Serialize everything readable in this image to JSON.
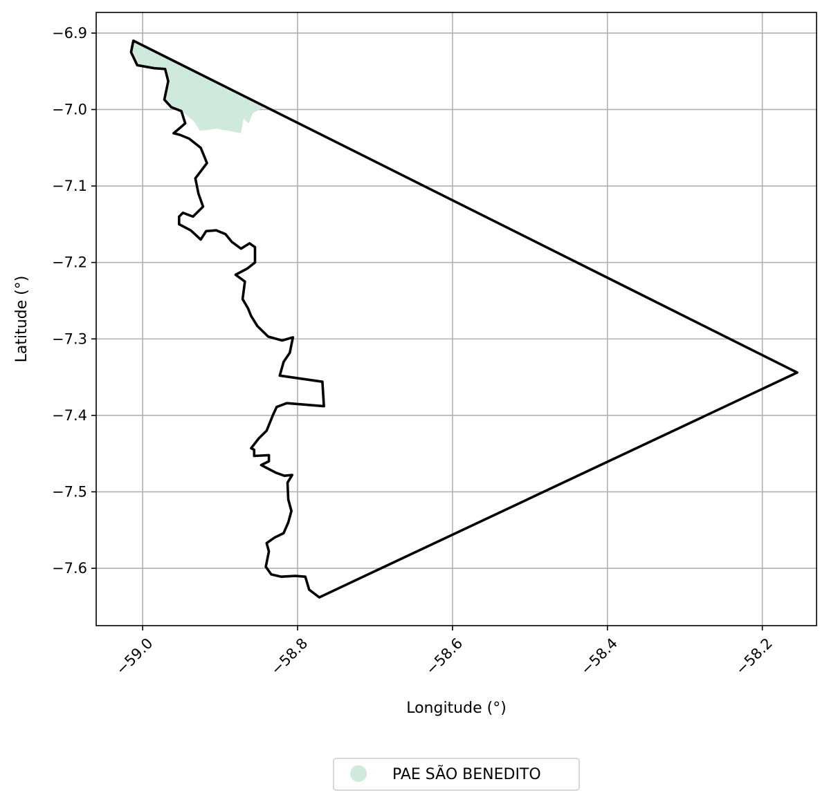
{
  "chart_data": {
    "type": "map",
    "xlabel": "Longitude (°)",
    "ylabel": "Latitude (°)",
    "xlim": [
      -59.06,
      -58.13
    ],
    "ylim": [
      -7.675,
      -6.873
    ],
    "xticks": [
      -59.0,
      -58.8,
      -58.6,
      -58.4,
      -58.2
    ],
    "xtick_labels": [
      "−59.0",
      "−58.8",
      "−58.6",
      "−58.4",
      "−58.2"
    ],
    "yticks": [
      -6.9,
      -7.0,
      -7.1,
      -7.2,
      -7.3,
      -7.4,
      -7.5,
      -7.6
    ],
    "ytick_labels": [
      "−6.9",
      "−7.0",
      "−7.1",
      "−7.2",
      "−7.3",
      "−7.4",
      "−7.5",
      "−7.6"
    ],
    "grid": true,
    "legend_position": "bottom-center",
    "legend": [
      {
        "label": "PAE SÃO BENEDITO",
        "color": "#cfeadc"
      }
    ],
    "area": {
      "name": "PAE SÃO BENEDITO",
      "color": "#cfeadc",
      "polygon": [
        [
          -59.012,
          -6.912
        ],
        [
          -58.84,
          -6.995
        ],
        [
          -58.858,
          -7.005
        ],
        [
          -58.863,
          -7.018
        ],
        [
          -58.87,
          -7.012
        ],
        [
          -58.873,
          -7.031
        ],
        [
          -58.905,
          -7.025
        ],
        [
          -58.926,
          -7.028
        ],
        [
          -58.934,
          -7.015
        ],
        [
          -58.95,
          -7.002
        ],
        [
          -58.963,
          -6.997
        ],
        [
          -58.972,
          -6.987
        ],
        [
          -58.967,
          -6.963
        ],
        [
          -58.971,
          -6.947
        ],
        [
          -58.985,
          -6.946
        ],
        [
          -59.007,
          -6.942
        ],
        [
          -59.015,
          -6.925
        ]
      ]
    },
    "boundary": {
      "color": "#000000",
      "polygon": [
        [
          -59.012,
          -6.91
        ],
        [
          -58.155,
          -7.344
        ],
        [
          -58.772,
          -7.638
        ],
        [
          -58.785,
          -7.628
        ],
        [
          -58.79,
          -7.611
        ],
        [
          -58.803,
          -7.61
        ],
        [
          -58.821,
          -7.611
        ],
        [
          -58.834,
          -7.608
        ],
        [
          -58.841,
          -7.598
        ],
        [
          -58.837,
          -7.578
        ],
        [
          -58.84,
          -7.567
        ],
        [
          -58.83,
          -7.56
        ],
        [
          -58.818,
          -7.554
        ],
        [
          -58.812,
          -7.54
        ],
        [
          -58.808,
          -7.525
        ],
        [
          -58.812,
          -7.51
        ],
        [
          -58.813,
          -7.488
        ],
        [
          -58.807,
          -7.478
        ],
        [
          -58.817,
          -7.479
        ],
        [
          -58.828,
          -7.475
        ],
        [
          -58.847,
          -7.465
        ],
        [
          -58.837,
          -7.46
        ],
        [
          -58.837,
          -7.452
        ],
        [
          -58.856,
          -7.453
        ],
        [
          -58.856,
          -7.445
        ],
        [
          -58.86,
          -7.443
        ],
        [
          -58.85,
          -7.43
        ],
        [
          -58.84,
          -7.42
        ],
        [
          -58.832,
          -7.4
        ],
        [
          -58.827,
          -7.389
        ],
        [
          -58.814,
          -7.384
        ],
        [
          -58.766,
          -7.388
        ],
        [
          -58.768,
          -7.356
        ],
        [
          -58.823,
          -7.348
        ],
        [
          -58.818,
          -7.33
        ],
        [
          -58.81,
          -7.318
        ],
        [
          -58.806,
          -7.298
        ],
        [
          -58.82,
          -7.302
        ],
        [
          -58.838,
          -7.297
        ],
        [
          -58.852,
          -7.283
        ],
        [
          -58.86,
          -7.27
        ],
        [
          -58.864,
          -7.26
        ],
        [
          -58.871,
          -7.248
        ],
        [
          -58.868,
          -7.225
        ],
        [
          -58.88,
          -7.216
        ],
        [
          -58.865,
          -7.208
        ],
        [
          -58.855,
          -7.2
        ],
        [
          -58.855,
          -7.18
        ],
        [
          -58.862,
          -7.175
        ],
        [
          -58.873,
          -7.182
        ],
        [
          -58.885,
          -7.173
        ],
        [
          -58.893,
          -7.163
        ],
        [
          -58.905,
          -7.158
        ],
        [
          -58.918,
          -7.159
        ],
        [
          -58.925,
          -7.17
        ],
        [
          -58.938,
          -7.158
        ],
        [
          -58.953,
          -7.15
        ],
        [
          -58.953,
          -7.14
        ],
        [
          -58.948,
          -7.135
        ],
        [
          -58.935,
          -7.14
        ],
        [
          -58.922,
          -7.127
        ],
        [
          -58.928,
          -7.11
        ],
        [
          -58.932,
          -7.09
        ],
        [
          -58.917,
          -7.07
        ],
        [
          -58.925,
          -7.05
        ],
        [
          -58.94,
          -7.038
        ],
        [
          -58.952,
          -7.033
        ],
        [
          -58.96,
          -7.031
        ],
        [
          -58.953,
          -7.025
        ],
        [
          -58.945,
          -7.018
        ],
        [
          -58.95,
          -7.002
        ],
        [
          -58.963,
          -6.997
        ],
        [
          -58.972,
          -6.987
        ],
        [
          -58.967,
          -6.963
        ],
        [
          -58.971,
          -6.947
        ],
        [
          -58.985,
          -6.946
        ],
        [
          -59.007,
          -6.942
        ],
        [
          -59.015,
          -6.925
        ],
        [
          -59.012,
          -6.91
        ]
      ]
    }
  }
}
